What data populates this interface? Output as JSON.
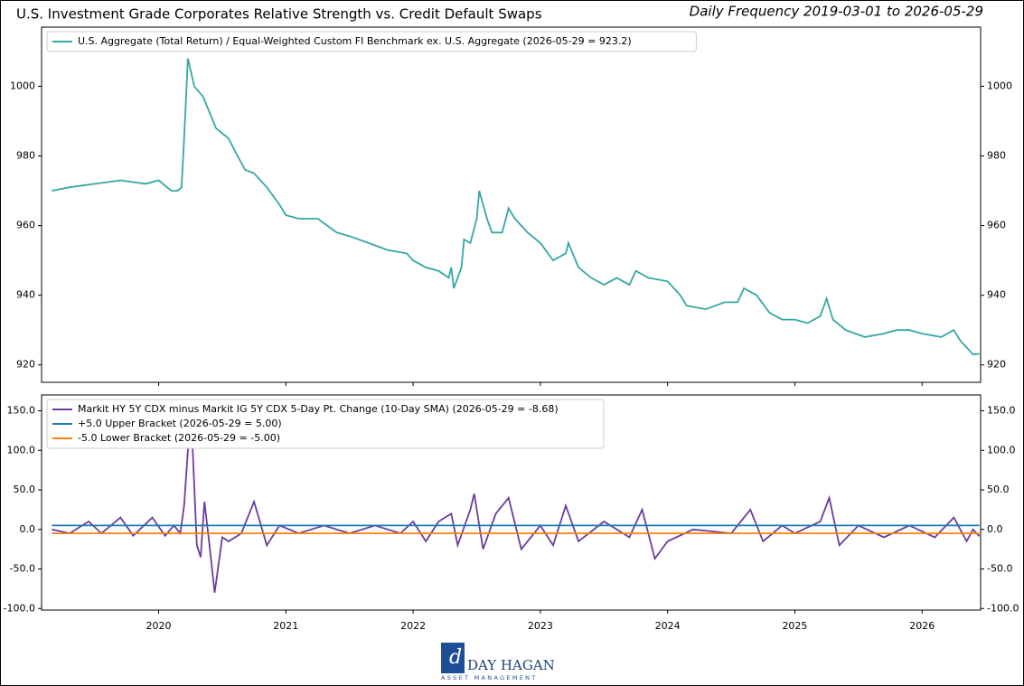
{
  "title": "U.S. Investment Grade Corporates Relative Strength vs. Credit Default Swaps",
  "subtitle": "Daily Frequency 2019-03-01 to 2026-05-29",
  "footer": {
    "brand": "DAY HAGAN",
    "tagline": "ASSET MANAGEMENT"
  },
  "chart_data": [
    {
      "type": "line",
      "xlim": [
        2019.08,
        2026.46
      ],
      "xticks": [
        2020,
        2021,
        2022,
        2023,
        2024,
        2025,
        2026
      ],
      "ylim": [
        915,
        1017
      ],
      "yticks": [
        920,
        940,
        960,
        980,
        1000
      ],
      "legend": "upper left",
      "series": [
        {
          "name": "U.S. Aggregate (Total Return) / Equal-Weighted Custom FI Benchmark ex. U.S. Aggregate (2026-05-29 = 923.2)",
          "color": "#35a7a3",
          "x": [
            2019.16,
            2019.3,
            2019.5,
            2019.7,
            2019.9,
            2020.0,
            2020.1,
            2020.15,
            2020.18,
            2020.2,
            2020.23,
            2020.28,
            2020.35,
            2020.45,
            2020.55,
            2020.62,
            2020.68,
            2020.75,
            2020.85,
            2020.95,
            2021.0,
            2021.1,
            2021.25,
            2021.4,
            2021.5,
            2021.65,
            2021.8,
            2021.95,
            2022.0,
            2022.1,
            2022.2,
            2022.28,
            2022.3,
            2022.32,
            2022.38,
            2022.4,
            2022.45,
            2022.5,
            2022.52,
            2022.58,
            2022.62,
            2022.7,
            2022.75,
            2022.8,
            2022.9,
            2023.0,
            2023.1,
            2023.2,
            2023.22,
            2023.3,
            2023.4,
            2023.5,
            2023.6,
            2023.7,
            2023.75,
            2023.85,
            2024.0,
            2024.1,
            2024.15,
            2024.3,
            2024.45,
            2024.55,
            2024.6,
            2024.7,
            2024.8,
            2024.9,
            2025.0,
            2025.1,
            2025.2,
            2025.25,
            2025.3,
            2025.4,
            2025.55,
            2025.7,
            2025.8,
            2025.9,
            2026.0,
            2026.15,
            2026.25,
            2026.3,
            2026.4,
            2026.45
          ],
          "values": [
            970,
            971,
            972,
            973,
            972,
            973,
            970,
            970,
            971,
            985,
            1008,
            1000,
            997,
            988,
            985,
            980,
            976,
            975,
            971,
            966,
            963,
            962,
            962,
            958,
            957,
            955,
            953,
            952,
            950,
            948,
            947,
            945,
            948,
            942,
            948,
            956,
            955,
            962,
            970,
            962,
            958,
            958,
            965,
            962,
            958,
            955,
            950,
            952,
            955,
            948,
            945,
            943,
            945,
            943,
            947,
            945,
            944,
            940,
            937,
            936,
            938,
            938,
            942,
            940,
            935,
            933,
            933,
            932,
            934,
            939,
            933,
            930,
            928,
            929,
            930,
            930,
            929,
            928,
            930,
            927,
            923,
            923.2
          ]
        }
      ]
    },
    {
      "type": "line",
      "xlim": [
        2019.08,
        2026.46
      ],
      "xticks": [
        2020,
        2021,
        2022,
        2023,
        2024,
        2025,
        2026
      ],
      "ylim": [
        -102,
        170
      ],
      "yticks": [
        {
          "value": -100,
          "label": "-100.0"
        },
        {
          "value": -50,
          "label": "-50.0"
        },
        {
          "value": 0,
          "label": "0.0"
        },
        {
          "value": 50,
          "label": "50.0"
        },
        {
          "value": 100,
          "label": "100.0"
        },
        {
          "value": 150,
          "label": "150.0"
        }
      ],
      "legend": "upper left",
      "series": [
        {
          "name": "Markit HY 5Y CDX minus Markit IG 5Y CDX 5-Day Pt. Change (10-Day SMA) (2026-05-29 = -8.68)",
          "color": "#6a3d9a",
          "x": [
            2019.16,
            2019.3,
            2019.45,
            2019.55,
            2019.7,
            2019.8,
            2019.95,
            2020.05,
            2020.12,
            2020.17,
            2020.2,
            2020.23,
            2020.26,
            2020.3,
            2020.33,
            2020.36,
            2020.4,
            2020.44,
            2020.5,
            2020.55,
            2020.65,
            2020.75,
            2020.85,
            2020.95,
            2021.1,
            2021.3,
            2021.5,
            2021.7,
            2021.9,
            2022.0,
            2022.1,
            2022.2,
            2022.3,
            2022.35,
            2022.45,
            2022.48,
            2022.55,
            2022.65,
            2022.75,
            2022.85,
            2023.0,
            2023.1,
            2023.2,
            2023.3,
            2023.5,
            2023.7,
            2023.8,
            2023.9,
            2024.0,
            2024.2,
            2024.5,
            2024.65,
            2024.75,
            2024.9,
            2025.0,
            2025.2,
            2025.27,
            2025.35,
            2025.5,
            2025.7,
            2025.9,
            2026.1,
            2026.25,
            2026.35,
            2026.4,
            2026.45
          ],
          "values": [
            0,
            -5,
            10,
            -5,
            15,
            -8,
            15,
            -8,
            5,
            -5,
            30,
            100,
            130,
            -20,
            -35,
            35,
            -20,
            -80,
            -10,
            -15,
            -5,
            35,
            -20,
            5,
            -5,
            5,
            -5,
            5,
            -5,
            10,
            -15,
            10,
            20,
            -20,
            25,
            45,
            -25,
            20,
            40,
            -25,
            5,
            -20,
            30,
            -15,
            10,
            -10,
            25,
            -37,
            -15,
            0,
            -5,
            25,
            -15,
            5,
            -5,
            10,
            40,
            -20,
            5,
            -10,
            5,
            -10,
            15,
            -15,
            0,
            -8.68
          ]
        },
        {
          "name": "+5.0 Upper Bracket (2026-05-29 = 5.00)",
          "color": "#1f77b4",
          "x": [
            2019.16,
            2026.45
          ],
          "values": [
            5,
            5
          ]
        },
        {
          "name": "-5.0 Lower Bracket (2026-05-29 = -5.00)",
          "color": "#ff7f0e",
          "x": [
            2019.16,
            2026.45
          ],
          "values": [
            -5,
            -5
          ]
        }
      ]
    }
  ]
}
